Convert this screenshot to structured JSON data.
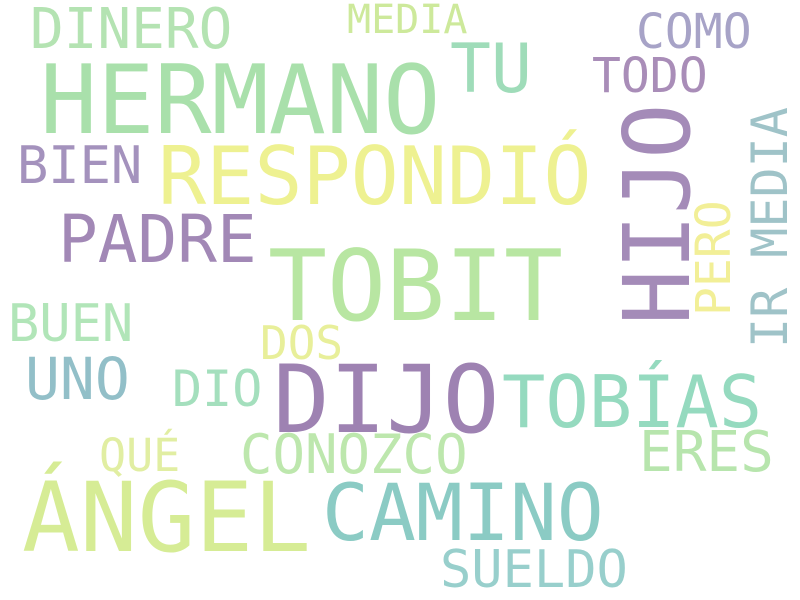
{
  "words": [
    {
      "text": "DINERO",
      "color": "#b4e3b2"
    },
    {
      "text": "MEDIA",
      "color": "#cde99b"
    },
    {
      "text": "COMO",
      "color": "#a7a3c7"
    },
    {
      "text": "HERMANO",
      "color": "#a9e0ab"
    },
    {
      "text": "TU",
      "color": "#9fdcb9"
    },
    {
      "text": "TODO",
      "color": "#a98db8"
    },
    {
      "text": "HIJO",
      "color": "#a48bb8"
    },
    {
      "text": "IR MEDIA",
      "color": "#9fc3c8"
    },
    {
      "text": "BIEN",
      "color": "#a492bd"
    },
    {
      "text": "RESPONDIÓ",
      "color": "#eef191"
    },
    {
      "text": "PADRE",
      "color": "#a288b6"
    },
    {
      "text": "PERO",
      "color": "#f2ef97"
    },
    {
      "text": "TOBIT",
      "color": "#b8e6a2"
    },
    {
      "text": "BUEN",
      "color": "#b1e5b8"
    },
    {
      "text": "DOS",
      "color": "#e8ef9a"
    },
    {
      "text": "UNO",
      "color": "#92bfc8"
    },
    {
      "text": "DIO",
      "color": "#a4dfbd"
    },
    {
      "text": "DIJO",
      "color": "#9e82b2"
    },
    {
      "text": "TOBÍAS",
      "color": "#95dabf"
    },
    {
      "text": "CONOZCO",
      "color": "#bde7ad"
    },
    {
      "text": "QUÉ",
      "color": "#e1eea2"
    },
    {
      "text": "ERES",
      "color": "#b7e5ad"
    },
    {
      "text": "ÁNGEL",
      "color": "#d6ec95"
    },
    {
      "text": "CAMINO",
      "color": "#8bcbc4"
    },
    {
      "text": "SUELDO",
      "color": "#98cfcc"
    }
  ]
}
